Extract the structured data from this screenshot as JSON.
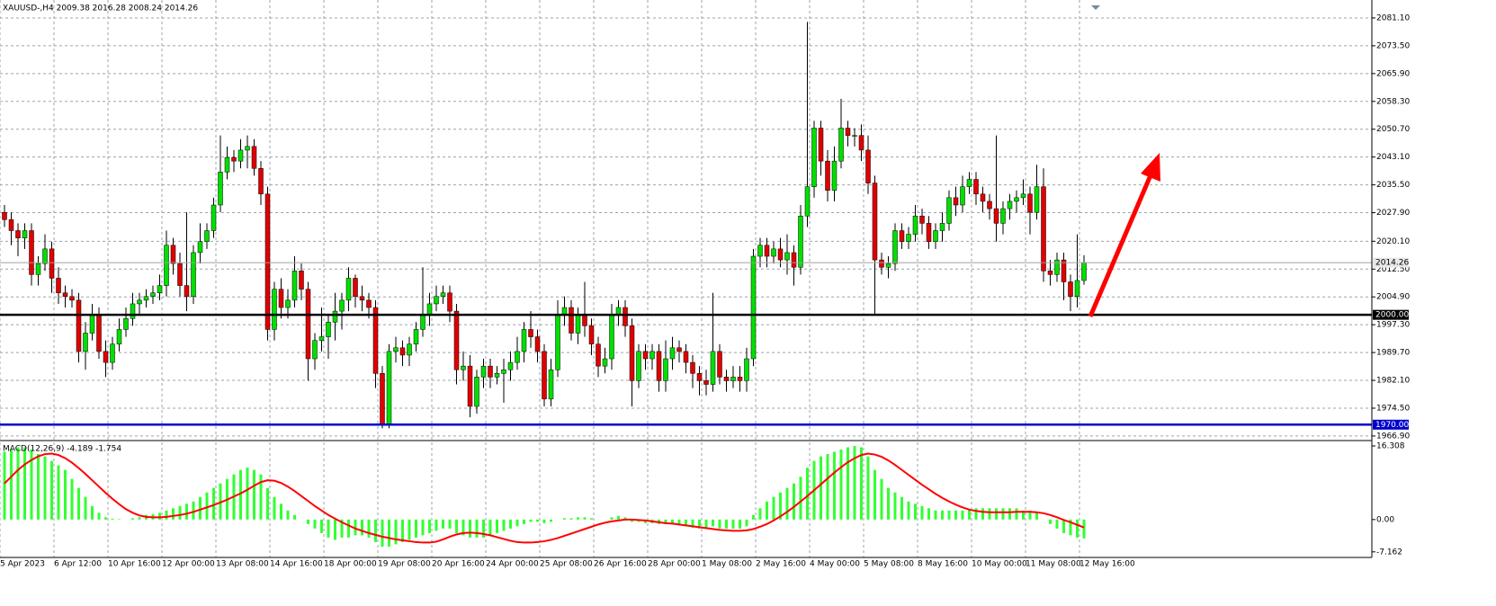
{
  "chart_data": [
    {
      "type": "candlestick",
      "title": "XAUUSD-,H4  2009.38 2016.28 2008.24 2014.26",
      "categories": [
        "5 Apr 2023",
        null,
        null,
        null,
        null,
        null,
        null,
        null,
        "6 Apr 12:00",
        null,
        null,
        null,
        null,
        null,
        null,
        null,
        "10 Apr 16:00",
        null,
        null,
        null,
        null,
        null,
        null,
        null,
        "12 Apr 00:00",
        null,
        null,
        null,
        null,
        null,
        null,
        null,
        "13 Apr 08:00",
        null,
        null,
        null,
        null,
        null,
        null,
        null,
        "14 Apr 16:00",
        null,
        null,
        null,
        null,
        null,
        null,
        null,
        "18 Apr 00:00",
        null,
        null,
        null,
        null,
        null,
        null,
        null,
        "19 Apr 08:00",
        null,
        null,
        null,
        null,
        null,
        null,
        null,
        "20 Apr 16:00",
        null,
        null,
        null,
        null,
        null,
        null,
        null,
        "24 Apr 00:00",
        null,
        null,
        null,
        null,
        null,
        null,
        null,
        "25 Apr 08:00",
        null,
        null,
        null,
        null,
        null,
        null,
        null,
        "26 Apr 16:00",
        null,
        null,
        null,
        null,
        null,
        null,
        null,
        "28 Apr 00:00",
        null,
        null,
        null,
        null,
        null,
        null,
        null,
        "1 May 08:00",
        null,
        null,
        null,
        null,
        null,
        null,
        null,
        "2 May 16:00",
        null,
        null,
        null,
        null,
        null,
        null,
        null,
        "4 May 00:00",
        null,
        null,
        null,
        null,
        null,
        null,
        null,
        "5 May 08:00",
        null,
        null,
        null,
        null,
        null,
        null,
        null,
        "8 May 16:00",
        null,
        null,
        null,
        null,
        null,
        null,
        null,
        "10 May 00:00",
        null,
        null,
        null,
        null,
        null,
        null,
        null,
        "11 May 08:00",
        null,
        null,
        null,
        null,
        null,
        null,
        null,
        "12 May 16:00"
      ],
      "open": [
        2028,
        2026,
        2023,
        2021,
        2023,
        2011,
        2014,
        2018,
        2010,
        2006,
        2005,
        2004,
        1990,
        1995,
        2000,
        1990,
        1987,
        1992,
        1996,
        1999,
        2003,
        2004,
        2005,
        2006,
        2008,
        2019,
        2014,
        2008,
        2005,
        2017,
        2020,
        2023,
        2030,
        2039,
        2043,
        2042,
        2045,
        2046,
        2040,
        2033,
        1996,
        2007,
        2002,
        2004,
        2012,
        2007,
        1988,
        1993,
        1994,
        1998,
        2001,
        2004,
        2010,
        2005,
        2004,
        2002,
        1984,
        1970,
        1990,
        1991,
        1989,
        1992,
        1996,
        2000,
        2003,
        2005,
        2006,
        2001,
        1985,
        1986,
        1975,
        1983,
        1986,
        1983,
        1984,
        1985,
        1987,
        1990,
        1996,
        1994,
        1990,
        1977,
        1985,
        2000,
        2002,
        1995,
        2000,
        1997,
        1992,
        1986,
        1988,
        2000,
        2002,
        1997,
        1982,
        1990,
        1988,
        1990,
        1982,
        1988,
        1991,
        1990,
        1987,
        1984,
        1982,
        1981,
        1990,
        1983,
        1982,
        1983,
        1982,
        1988,
        2016,
        2019,
        2016,
        2018,
        2015,
        2017,
        2013,
        2027,
        2035,
        2051,
        2042,
        2034,
        2042,
        2051,
        2049,
        2049,
        2045,
        2036,
        2015,
        2013,
        2014,
        2023,
        2020,
        2022,
        2027,
        2025,
        2020,
        2023,
        2025,
        2032,
        2030,
        2035,
        2037,
        2033,
        2031,
        2029,
        2025,
        2029,
        2031,
        2032,
        2033,
        2028,
        2035,
        2012,
        2011,
        2015,
        2009,
        2005,
        2009.38
      ],
      "high": [
        2030,
        2028,
        2025,
        2025,
        2025,
        2016,
        2022,
        2020,
        2013,
        2008,
        2007,
        2006,
        1998,
        2003,
        2002,
        1993,
        1994,
        1999,
        2002,
        2006,
        2006,
        2007,
        2008,
        2011,
        2023,
        2021,
        2017,
        2028,
        2019,
        2025,
        2025,
        2032,
        2049,
        2046,
        2045,
        2048,
        2049,
        2048,
        2042,
        2035,
        2009,
        2010,
        2007,
        2016,
        2014,
        2009,
        1995,
        2002,
        2000,
        2006,
        2006,
        2013,
        2011,
        2008,
        2006,
        2004,
        1986,
        1992,
        1994,
        1993,
        1994,
        1998,
        2013,
        2006,
        2008,
        2008,
        2008,
        2003,
        1990,
        1989,
        1985,
        1988,
        1988,
        1986,
        1988,
        1990,
        1994,
        1998,
        2001,
        1996,
        1992,
        1988,
        2004,
        2005,
        2004,
        2002,
        2009,
        1999,
        1994,
        1991,
        2003,
        2004,
        2004,
        1999,
        1992,
        1992,
        1992,
        1992,
        1993,
        1994,
        1993,
        1992,
        1989,
        1986,
        1985,
        2006,
        1992,
        1985,
        1986,
        1986,
        1991,
        2018,
        2021,
        2021,
        2020,
        2021,
        2022,
        2019,
        2030,
        2080,
        2053,
        2053,
        2045,
        2046,
        2059,
        2053,
        2051,
        2052,
        2049,
        2038,
        2017,
        2016,
        2025,
        2025,
        2024,
        2030,
        2029,
        2027,
        2025,
        2028,
        2034,
        2035,
        2038,
        2039,
        2039,
        2035,
        2033,
        2049,
        2031,
        2033,
        2034,
        2037,
        2035,
        2041,
        2040,
        2015,
        2017,
        2017,
        2011,
        2022,
        2016.28
      ],
      "low": [
        2024,
        2019,
        2016,
        2018,
        2008,
        2008,
        2012,
        2006,
        2003,
        2002,
        2002,
        1987,
        1985,
        1993,
        1988,
        1983,
        1985,
        1990,
        1994,
        1997,
        2000,
        2002,
        2003,
        2004,
        2005,
        2011,
        2005,
        2001,
        2003,
        2014,
        2018,
        2021,
        2028,
        2037,
        2039,
        2040,
        2040,
        2038,
        2030,
        1993,
        1993,
        1999,
        1999,
        2002,
        2004,
        1982,
        1985,
        1990,
        1988,
        1993,
        1996,
        2001,
        2002,
        2001,
        1999,
        1980,
        1969,
        1969,
        1987,
        1986,
        1986,
        1990,
        1994,
        1997,
        2001,
        2003,
        1998,
        1981,
        1982,
        1972,
        1973,
        1980,
        1980,
        1981,
        1976,
        1982,
        1985,
        1987,
        1991,
        1987,
        1975,
        1975,
        1983,
        1997,
        1993,
        1992,
        1994,
        1989,
        1983,
        1984,
        1985,
        1997,
        1994,
        1975,
        1980,
        1985,
        1985,
        1979,
        1979,
        1985,
        1987,
        1984,
        1980,
        1978,
        1978,
        1979,
        1981,
        1979,
        1980,
        1979,
        1979,
        1986,
        2013,
        2013,
        2014,
        2013,
        2011,
        2008,
        2011,
        2024,
        2032,
        2038,
        2031,
        2031,
        2040,
        2046,
        2046,
        2042,
        2033,
        2000,
        2011,
        2010,
        2012,
        2018,
        2018,
        2020,
        2022,
        2018,
        2018,
        2020,
        2023,
        2027,
        2028,
        2033,
        2030,
        2028,
        2026,
        2020,
        2022,
        2026,
        2028,
        2030,
        2022,
        2026,
        2009,
        2008,
        2009,
        2004,
        2001,
        2002,
        2008.24
      ],
      "close": [
        2026,
        2023,
        2021,
        2023,
        2011,
        2014,
        2018,
        2010,
        2006,
        2005,
        2004,
        1990,
        1995,
        2000,
        1990,
        1987,
        1992,
        1996,
        1999,
        2003,
        2004,
        2005,
        2006,
        2008,
        2019,
        2014,
        2008,
        2005,
        2017,
        2020,
        2023,
        2030,
        2039,
        2043,
        2042,
        2045,
        2046,
        2040,
        2033,
        1996,
        2007,
        2002,
        2004,
        2012,
        2007,
        1988,
        1993,
        1994,
        1998,
        2001,
        2004,
        2010,
        2005,
        2004,
        2002,
        1984,
        1970,
        1990,
        1991,
        1989,
        1992,
        1996,
        2000,
        2003,
        2005,
        2006,
        2001,
        1985,
        1986,
        1975,
        1983,
        1986,
        1983,
        1984,
        1985,
        1987,
        1990,
        1996,
        1994,
        1990,
        1977,
        1985,
        2000,
        2002,
        1995,
        2000,
        1997,
        1992,
        1986,
        1988,
        2000,
        2002,
        1997,
        1982,
        1990,
        1988,
        1990,
        1982,
        1988,
        1991,
        1990,
        1987,
        1984,
        1982,
        1981,
        1990,
        1983,
        1982,
        1983,
        1982,
        1988,
        2016,
        2019,
        2016,
        2018,
        2015,
        2017,
        2013,
        2027,
        2035,
        2051,
        2042,
        2034,
        2042,
        2051,
        2049,
        2049,
        2045,
        2036,
        2015,
        2013,
        2014,
        2023,
        2020,
        2022,
        2027,
        2025,
        2020,
        2023,
        2025,
        2032,
        2030,
        2035,
        2037,
        2033,
        2031,
        2029,
        2025,
        2029,
        2031,
        2032,
        2033,
        2028,
        2035,
        2012,
        2011,
        2015,
        2009,
        2005,
        2009.38,
        2014.26
      ],
      "up_color": "#00e000",
      "down_color": "#e00000",
      "wick_color": "#000000",
      "ylim": [
        1965.9,
        2086.0
      ],
      "yticks": [
        {
          "value": 2081.1,
          "label": "2081.10"
        },
        {
          "value": 2073.5,
          "label": "2073.50"
        },
        {
          "value": 2065.9,
          "label": "2065.90"
        },
        {
          "value": 2058.3,
          "label": "2058.30"
        },
        {
          "value": 2050.7,
          "label": "2050.70"
        },
        {
          "value": 2043.1,
          "label": "2043.10"
        },
        {
          "value": 2035.5,
          "label": "2035.50"
        },
        {
          "value": 2027.9,
          "label": "2027.90"
        },
        {
          "value": 2020.1,
          "label": "2020.10"
        },
        {
          "value": 2012.5,
          "label": "2012.50"
        },
        {
          "value": 2004.9,
          "label": "2004.90"
        },
        {
          "value": 1997.3,
          "label": "1997.30"
        },
        {
          "value": 1989.7,
          "label": "1989.70"
        },
        {
          "value": 1982.1,
          "label": "1982.10"
        },
        {
          "value": 1974.5,
          "label": "1974.50"
        },
        {
          "value": 1966.9,
          "label": "1966.90"
        }
      ],
      "hlines": [
        {
          "value": 2014.26,
          "label": "2014.26",
          "color": "#a0a0a0"
        },
        {
          "value": 2000,
          "label": "2000.00",
          "color": "#000000"
        },
        {
          "value": 1970,
          "label": "1970.00",
          "color": "#0000cc"
        }
      ],
      "grid": true
    },
    {
      "type": "macd",
      "title": "MACD(12,26,9) -4.189 -1.754",
      "histogram": [
        15,
        15.5,
        16,
        16,
        15.5,
        14.5,
        14,
        13,
        12,
        11,
        9,
        7,
        5,
        3,
        1.5,
        0.5,
        0.2,
        0.1,
        0,
        0.3,
        0.5,
        1,
        1.2,
        1.5,
        2,
        2.5,
        3,
        3.5,
        4,
        5,
        6,
        7,
        8,
        9,
        10,
        11,
        11.5,
        11,
        10,
        7,
        5,
        3.5,
        2,
        1,
        0,
        -1,
        -2,
        -3,
        -4,
        -4.5,
        -4,
        -4,
        -3.5,
        -3.5,
        -4,
        -5,
        -6,
        -6,
        -5.5,
        -5,
        -4.5,
        -4,
        -3.5,
        -3,
        -2.5,
        -2,
        -2,
        -3,
        -3.5,
        -4,
        -4,
        -4,
        -3.5,
        -3,
        -2.5,
        -2,
        -1.5,
        -1,
        -0.5,
        -0.5,
        -0.8,
        -0.5,
        0,
        0.3,
        0.3,
        0.5,
        0.5,
        0.3,
        0,
        0,
        0.5,
        0.8,
        0.5,
        -0.5,
        -0.5,
        -0.8,
        -0.8,
        -1,
        -1,
        -1,
        -1.2,
        -1.5,
        -1.8,
        -2,
        -2,
        -1.5,
        -2,
        -2,
        -2,
        -2,
        -1.5,
        1,
        2.5,
        4,
        5,
        6,
        7,
        8,
        9.5,
        11.5,
        13,
        14,
        14.5,
        15,
        15.5,
        16,
        16.3,
        16,
        14,
        11,
        9,
        7,
        6,
        5,
        4,
        3.5,
        3,
        2.5,
        2,
        2,
        2,
        2,
        2,
        2.2,
        2.5,
        2.5,
        2.5,
        2.5,
        2.5,
        2.5,
        2.5,
        2,
        2,
        1.5,
        0,
        -1,
        -2,
        -3,
        -3.5,
        -4,
        -4.189
      ],
      "signal": [
        8,
        9.5,
        11,
        12.2,
        13.2,
        14,
        14.5,
        14.6,
        14.3,
        13.6,
        12.6,
        11.4,
        10.1,
        8.7,
        7.3,
        5.9,
        4.6,
        3.4,
        2.3,
        1.5,
        0.9,
        0.6,
        0.5,
        0.5,
        0.6,
        0.8,
        1.0,
        1.3,
        1.7,
        2.2,
        2.7,
        3.2,
        3.8,
        4.4,
        5.1,
        5.8,
        6.6,
        7.5,
        8.3,
        8.7,
        8.6,
        8.1,
        7.3,
        6.3,
        5.2,
        4.1,
        3.0,
        2.0,
        1.0,
        0.2,
        -0.6,
        -1.3,
        -2.0,
        -2.5,
        -3.0,
        -3.4,
        -3.8,
        -4.1,
        -4.4,
        -4.6,
        -4.8,
        -5.0,
        -5.1,
        -5.1,
        -4.9,
        -4.4,
        -3.8,
        -3.3,
        -3.0,
        -2.9,
        -3.0,
        -3.2,
        -3.5,
        -3.9,
        -4.3,
        -4.7,
        -5.0,
        -5.1,
        -5.1,
        -5.0,
        -4.8,
        -4.5,
        -4.1,
        -3.6,
        -3.1,
        -2.6,
        -2.1,
        -1.6,
        -1.1,
        -0.7,
        -0.4,
        -0.2,
        0,
        0,
        -0.1,
        -0.2,
        -0.4,
        -0.6,
        -0.8,
        -0.9,
        -1.1,
        -1.3,
        -1.5,
        -1.7,
        -1.9,
        -2.1,
        -2.3,
        -2.4,
        -2.5,
        -2.5,
        -2.4,
        -2.1,
        -1.6,
        -1.0,
        -0.2,
        0.7,
        1.7,
        2.8,
        4.0,
        5.2,
        6.5,
        7.8,
        9.1,
        10.4,
        11.6,
        12.7,
        13.6,
        14.3,
        14.6,
        14.4,
        13.9,
        13.1,
        12.1,
        11.0,
        9.9,
        8.8,
        7.7,
        6.7,
        5.7,
        4.8,
        4.0,
        3.3,
        2.7,
        2.2,
        1.9,
        1.7,
        1.6,
        1.6,
        1.6,
        1.6,
        1.7,
        1.7,
        1.7,
        1.6,
        1.4,
        1.0,
        0.5,
        -0.1,
        -0.6,
        -1.2,
        -1.754
      ],
      "histogram_color": "#33ff33",
      "signal_color": "#ff0000",
      "ylim": [
        -8.4,
        17.3
      ],
      "yticks": [
        {
          "value": 16.308,
          "label": "16.308"
        },
        {
          "value": 0,
          "label": "0.00"
        },
        {
          "value": -7.162,
          "label": "-7.162"
        }
      ]
    }
  ]
}
